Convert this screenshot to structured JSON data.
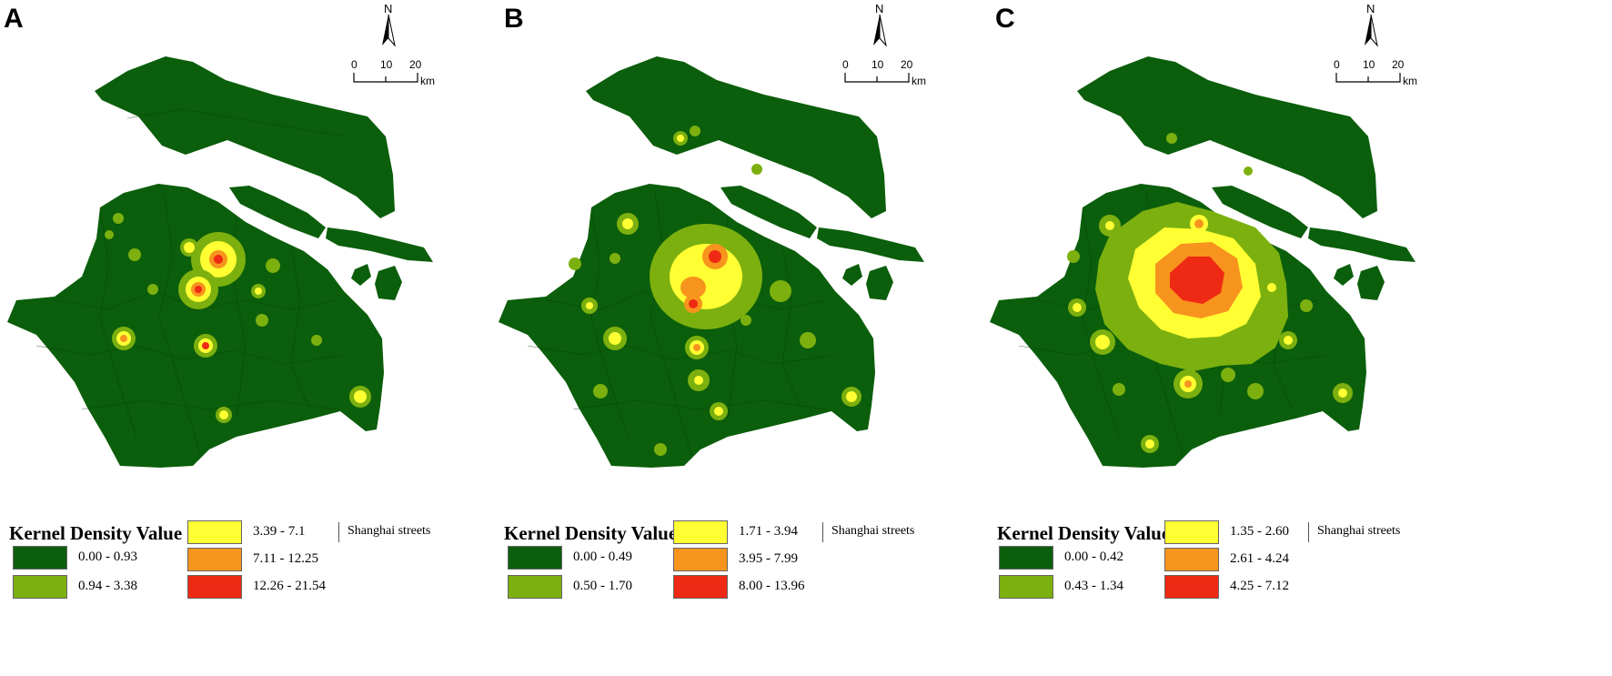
{
  "panels": [
    {
      "letter": "A",
      "legend_title": "Kernel Density Value",
      "classes": [
        {
          "range": "0.00 - 0.93",
          "color": "#0b5e0b"
        },
        {
          "range": "0.94 - 3.38",
          "color": "#7cb00f"
        },
        {
          "range": "3.39 - 7.1",
          "color": "#ffff33"
        },
        {
          "range": "7.11 - 12.25",
          "color": "#f7941d"
        },
        {
          "range": "12.26 - 21.54",
          "color": "#ee2a14"
        }
      ],
      "streets_label": "Shanghai streets"
    },
    {
      "letter": "B",
      "legend_title": "Kernel Density Value",
      "classes": [
        {
          "range": "0.00 - 0.49",
          "color": "#0b5e0b"
        },
        {
          "range": "0.50 - 1.70",
          "color": "#7cb00f"
        },
        {
          "range": "1.71 - 3.94",
          "color": "#ffff33"
        },
        {
          "range": "3.95 - 7.99",
          "color": "#f7941d"
        },
        {
          "range": "8.00 - 13.96",
          "color": "#ee2a14"
        }
      ],
      "streets_label": "Shanghai streets"
    },
    {
      "letter": "C",
      "legend_title": "Kernel Density Value",
      "classes": [
        {
          "range": "0.00 - 0.42",
          "color": "#0b5e0b"
        },
        {
          "range": "0.43 - 1.34",
          "color": "#7cb00f"
        },
        {
          "range": "1.35 - 2.60",
          "color": "#ffff33"
        },
        {
          "range": "2.61 - 4.24",
          "color": "#f7941d"
        },
        {
          "range": "4.25 - 7.12",
          "color": "#ee2a14"
        }
      ],
      "streets_label": "Shanghai streets"
    }
  ],
  "north_label": "N",
  "scale": {
    "ticks": [
      "0",
      "10",
      "20"
    ],
    "unit": "km"
  }
}
